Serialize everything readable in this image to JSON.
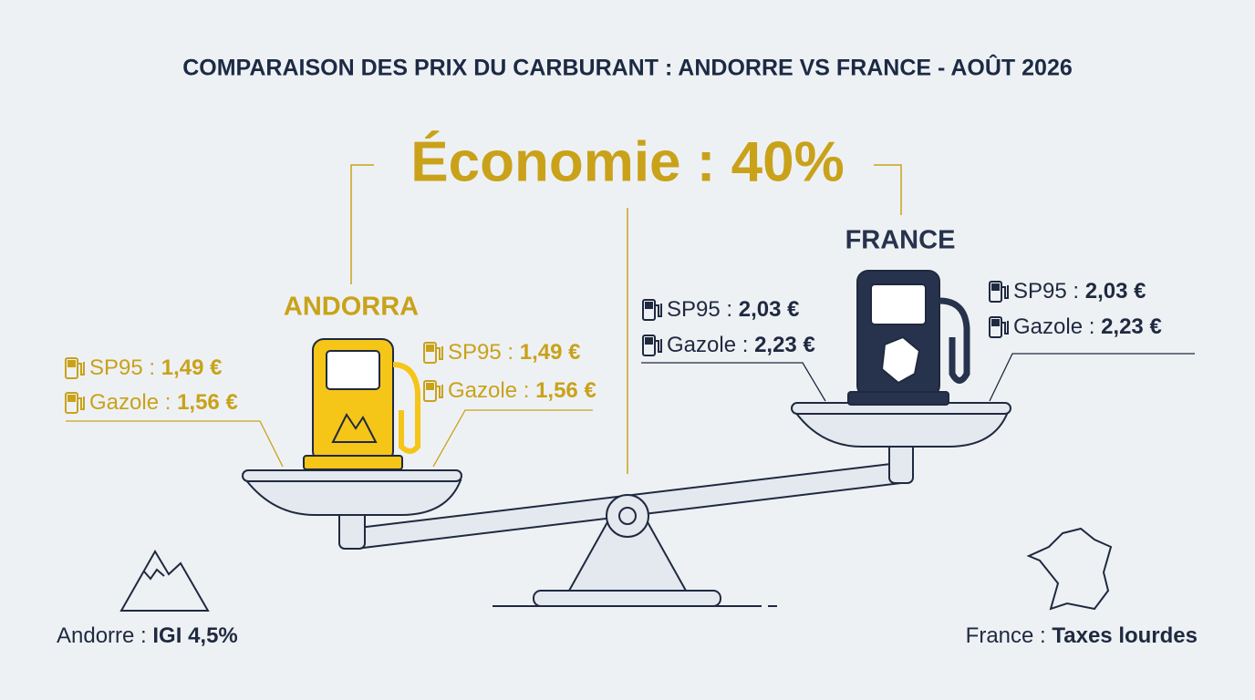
{
  "title": "COMPARAISON DES PRIX DU CARBURANT : ANDORRE VS FRANCE - AOÛT 2026",
  "headline": "Économie : 40%",
  "andorra": {
    "label": "ANDORRA",
    "prices": [
      {
        "fuel": "SP95 :",
        "price": "1,49 €"
      },
      {
        "fuel": "Gazole :",
        "price": "1,56 €"
      }
    ]
  },
  "france": {
    "label": "FRANCE",
    "prices": [
      {
        "fuel": "SP95 :",
        "price": "2,03 €"
      },
      {
        "fuel": "Gazole :",
        "price": "2,23 €"
      }
    ]
  },
  "footer": {
    "andorra": {
      "label": "Andorre :",
      "value": "IGI 4,5%"
    },
    "france": {
      "label": "France :",
      "value": "Taxes lourdes"
    }
  }
}
